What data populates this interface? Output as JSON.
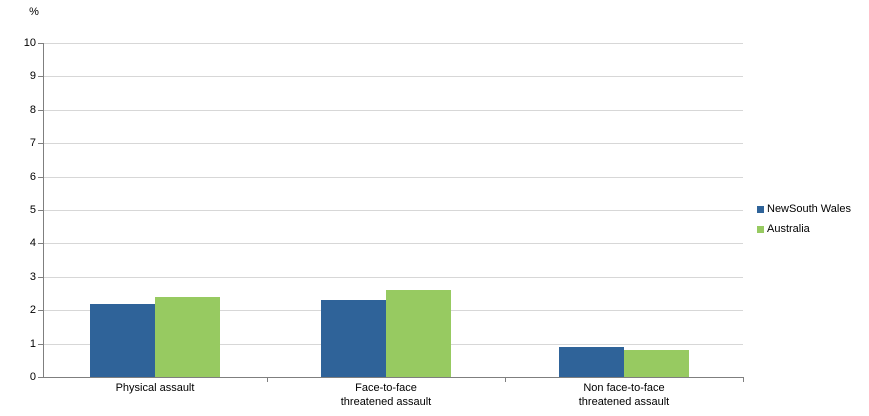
{
  "chart_data": {
    "type": "bar",
    "title": "",
    "ylabel": "%",
    "xlabel": "",
    "categories": [
      "Physical assault",
      "Face-to-face\nthreatened assault",
      "Non face-to-face\nthreatened assault"
    ],
    "series": [
      {
        "name": "NewSouth Wales",
        "color": "#2F6399",
        "values": [
          2.2,
          2.3,
          0.9
        ]
      },
      {
        "name": "Australia",
        "color": "#97CA61",
        "values": [
          2.4,
          2.6,
          0.8
        ]
      }
    ],
    "ylim": [
      0,
      10
    ],
    "ytick_step": 1,
    "ytick_labels": [
      "0",
      "1",
      "2",
      "3",
      "4",
      "5",
      "6",
      "7",
      "8",
      "9",
      "10"
    ],
    "grid": true,
    "legend_position": "right",
    "colors": {
      "gridline": "#d7d7d7",
      "axis": "#7f7f7f",
      "background": "#ffffff",
      "text": "#000000"
    }
  }
}
